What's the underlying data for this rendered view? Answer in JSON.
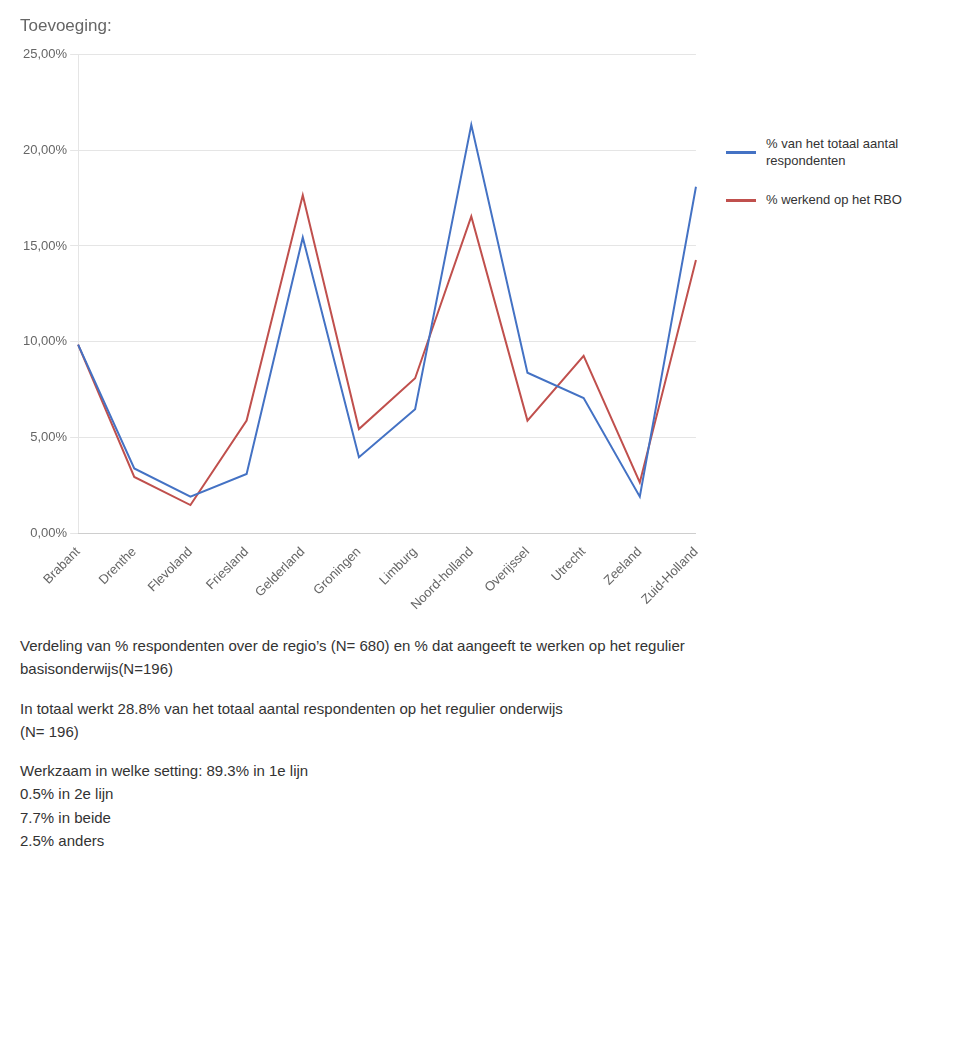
{
  "chart_data": {
    "type": "line",
    "title": "Toevoeging:",
    "categories": [
      "Brabant",
      "Drenthe",
      "Flevoland",
      "Friesland",
      "Gelderland",
      "Groningen",
      "Limburg",
      "Noord-holland",
      "Overijssel",
      "Utrecht",
      "Zeeland",
      "Zuid-Holland"
    ],
    "series": [
      {
        "name": "% van het totaal aantal\nrespondenten",
        "color": "#4472C4",
        "values": [
          0.0985,
          0.0338,
          0.0191,
          0.0309,
          0.1544,
          0.0397,
          0.0647,
          0.2132,
          0.0838,
          0.0706,
          0.0191,
          0.1809
        ]
      },
      {
        "name": "% werkend op het RBO",
        "color": "#C0504D",
        "values": [
          0.0985,
          0.0294,
          0.0147,
          0.0588,
          0.1765,
          0.0544,
          0.0809,
          0.1654,
          0.0588,
          0.0926,
          0.0265,
          0.1426
        ]
      }
    ],
    "ylim": [
      0.0,
      0.25
    ],
    "yticks": [
      {
        "value": 0.0,
        "label": "0,00%"
      },
      {
        "value": 0.05,
        "label": "5,00%"
      },
      {
        "value": 0.1,
        "label": "10,00%"
      },
      {
        "value": 0.15,
        "label": "15,00%"
      },
      {
        "value": 0.2,
        "label": "20,00%"
      },
      {
        "value": 0.25,
        "label": "25,00%"
      }
    ],
    "grid": "y",
    "legend": "right",
    "annotations": [
      [
        "Verdeling van % respondenten over de regio’s (N= 680) en % dat aangeeft te werken op het regulier",
        "basisonderwijs(N=196)"
      ],
      [
        "In totaal werkt 28.8% van het totaal aantal respondenten op het regulier onderwijs",
        "(N= 196)"
      ],
      [
        "Werkzaam in welke setting: 89.3% in 1e lijn",
        "0.5% in 2e lijn",
        "7.7% in beide",
        "2.5% anders"
      ]
    ]
  }
}
